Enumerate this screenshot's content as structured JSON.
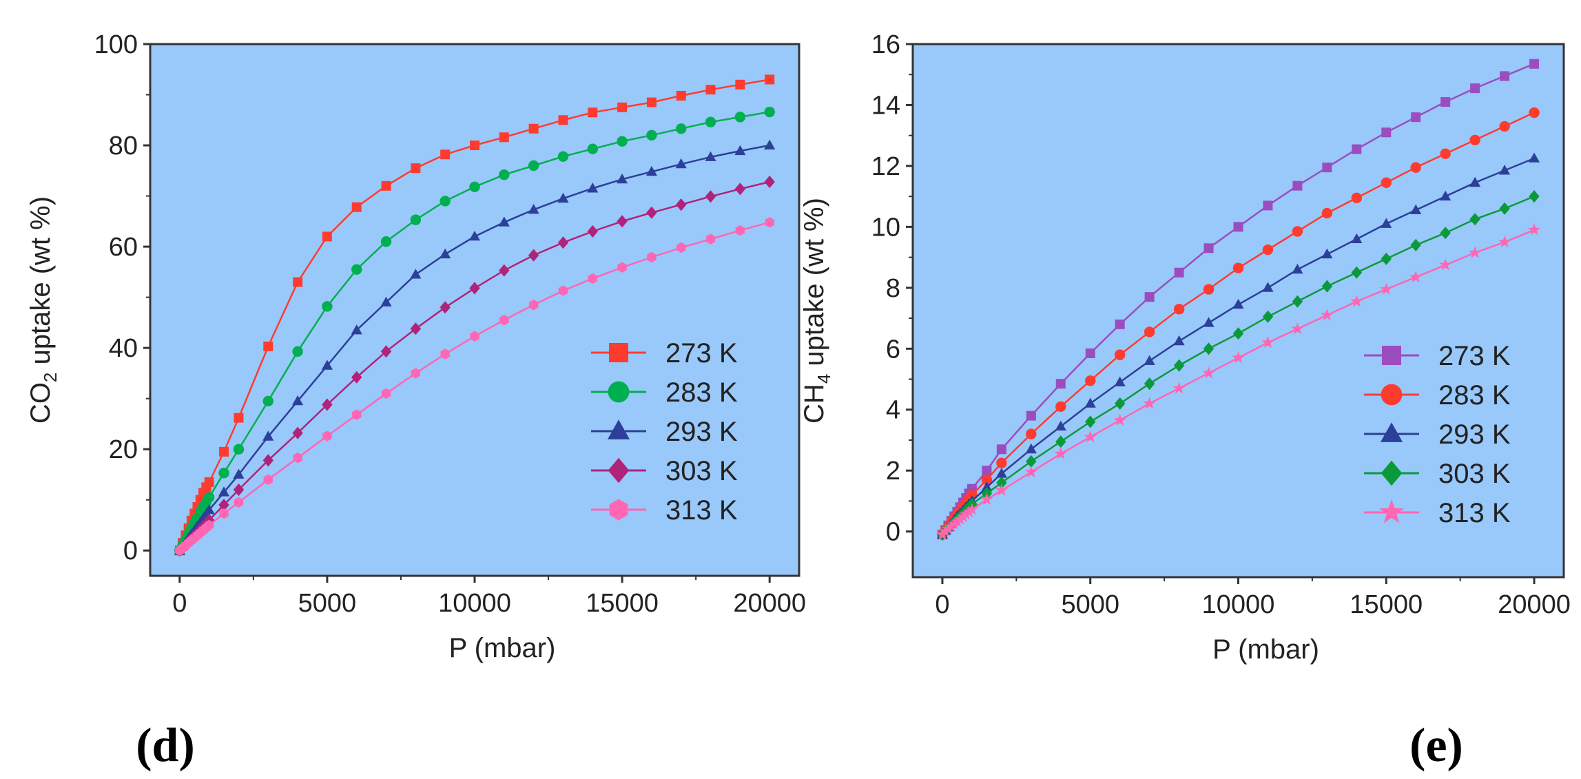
{
  "chart_data": [
    {
      "type": "line",
      "panel_label": "(d)",
      "xlabel": "P (mbar)",
      "ylabel": {
        "pre": "CO",
        "sub": "2",
        "post": " uptake (wt %)"
      },
      "xlim": [
        -1000,
        21000
      ],
      "ylim": [
        -5,
        100
      ],
      "xticks": [
        0,
        5000,
        10000,
        15000,
        20000
      ],
      "yticks": [
        0,
        20,
        40,
        60,
        80,
        100
      ],
      "ytick_minor_step": 10,
      "background": "#99c8fa",
      "legend_position": "bottom-right",
      "x": [
        0,
        100,
        200,
        300,
        400,
        500,
        600,
        700,
        800,
        900,
        1000,
        1500,
        2000,
        3000,
        4000,
        5000,
        6000,
        7000,
        8000,
        9000,
        10000,
        11000,
        12000,
        13000,
        14000,
        15000,
        16000,
        17000,
        18000,
        19000,
        20000
      ],
      "series": [
        {
          "name": "273 K",
          "color": "#ff3b30",
          "marker": "square",
          "values": [
            0,
            1.5,
            3.0,
            4.4,
            5.9,
            7.3,
            8.6,
            10.0,
            11.4,
            12.5,
            13.5,
            19.5,
            26.2,
            40.3,
            53.0,
            62.0,
            67.8,
            72.0,
            75.5,
            78.2,
            80.0,
            81.6,
            83.3,
            85.0,
            86.5,
            87.5,
            88.5,
            89.8,
            91.0,
            92.0,
            93.0
          ]
        },
        {
          "name": "283 K",
          "color": "#00b050",
          "marker": "circle",
          "values": [
            0,
            1.1,
            2.2,
            3.3,
            4.4,
            5.5,
            6.5,
            7.6,
            8.6,
            9.5,
            10.5,
            15.3,
            20.0,
            29.5,
            39.3,
            48.2,
            55.5,
            61.0,
            65.3,
            69.0,
            71.8,
            74.2,
            76.0,
            77.8,
            79.3,
            80.8,
            82.0,
            83.3,
            84.6,
            85.6,
            86.6
          ]
        },
        {
          "name": "293 K",
          "color": "#2c3f99",
          "marker": "triangle",
          "values": [
            0,
            0.8,
            1.6,
            2.4,
            3.2,
            4.0,
            4.8,
            5.6,
            6.4,
            7.2,
            8.0,
            11.5,
            15.0,
            22.5,
            29.5,
            36.5,
            43.5,
            49.0,
            54.5,
            58.5,
            62.0,
            64.8,
            67.3,
            69.5,
            71.5,
            73.3,
            74.8,
            76.3,
            77.7,
            78.9,
            80.0
          ]
        },
        {
          "name": "303 K",
          "color": "#b0237a",
          "marker": "diamond",
          "values": [
            0,
            0.6,
            1.2,
            1.8,
            2.4,
            3.0,
            3.6,
            4.2,
            4.8,
            5.4,
            6.0,
            9.0,
            12.0,
            17.8,
            23.2,
            28.8,
            34.2,
            39.3,
            43.8,
            48.0,
            51.8,
            55.3,
            58.3,
            60.8,
            63.0,
            65.0,
            66.7,
            68.3,
            69.9,
            71.4,
            72.8
          ]
        },
        {
          "name": "313 K",
          "color": "#ff66b3",
          "marker": "hexagon",
          "values": [
            0,
            0.5,
            1.0,
            1.5,
            2.0,
            2.5,
            3.0,
            3.5,
            4.0,
            4.5,
            5.0,
            7.3,
            9.5,
            14.0,
            18.3,
            22.6,
            26.8,
            31.0,
            35.0,
            38.8,
            42.3,
            45.5,
            48.5,
            51.3,
            53.7,
            55.9,
            57.9,
            59.8,
            61.5,
            63.2,
            64.8
          ]
        }
      ]
    },
    {
      "type": "line",
      "panel_label": "(e)",
      "xlabel": "P (mbar)",
      "ylabel": {
        "pre": "CH",
        "sub": "4",
        "post": " uptake (wt %)"
      },
      "xlim": [
        -1000,
        21000
      ],
      "ylim": [
        -1.5,
        16
      ],
      "xticks": [
        0,
        5000,
        10000,
        15000,
        20000
      ],
      "yticks": [
        0,
        2,
        4,
        6,
        8,
        10,
        12,
        14,
        16
      ],
      "ytick_minor_step": 1,
      "background": "#99c8fa",
      "legend_position": "bottom-right",
      "x": [
        0,
        100,
        200,
        300,
        400,
        500,
        600,
        700,
        800,
        900,
        1000,
        1500,
        2000,
        3000,
        4000,
        5000,
        6000,
        7000,
        8000,
        9000,
        10000,
        11000,
        12000,
        13000,
        14000,
        15000,
        16000,
        17000,
        18000,
        19000,
        20000
      ],
      "series": [
        {
          "name": "273 K",
          "color": "#9b4dbf",
          "marker": "square",
          "values": [
            -0.1,
            0.05,
            0.2,
            0.35,
            0.5,
            0.65,
            0.8,
            0.95,
            1.1,
            1.25,
            1.4,
            2.0,
            2.7,
            3.8,
            4.85,
            5.85,
            6.8,
            7.7,
            8.5,
            9.3,
            10.0,
            10.7,
            11.35,
            11.95,
            12.55,
            13.1,
            13.6,
            14.1,
            14.55,
            14.95,
            15.35
          ]
        },
        {
          "name": "283 K",
          "color": "#ff3b30",
          "marker": "circle",
          "values": [
            -0.1,
            0.03,
            0.16,
            0.29,
            0.42,
            0.55,
            0.68,
            0.81,
            0.94,
            1.07,
            1.2,
            1.7,
            2.25,
            3.2,
            4.1,
            4.95,
            5.8,
            6.55,
            7.3,
            7.95,
            8.65,
            9.25,
            9.85,
            10.45,
            10.95,
            11.45,
            11.95,
            12.4,
            12.85,
            13.3,
            13.75
          ]
        },
        {
          "name": "293 K",
          "color": "#2c3f99",
          "marker": "triangle",
          "values": [
            -0.1,
            0.02,
            0.14,
            0.26,
            0.38,
            0.5,
            0.6,
            0.7,
            0.8,
            0.9,
            1.0,
            1.45,
            1.9,
            2.7,
            3.45,
            4.2,
            4.9,
            5.6,
            6.25,
            6.85,
            7.45,
            8.0,
            8.6,
            9.1,
            9.6,
            10.1,
            10.55,
            11.0,
            11.45,
            11.85,
            12.25
          ]
        },
        {
          "name": "303 K",
          "color": "#0a9a3a",
          "marker": "diamond",
          "values": [
            -0.1,
            0.0,
            0.1,
            0.2,
            0.3,
            0.4,
            0.5,
            0.6,
            0.7,
            0.8,
            0.9,
            1.25,
            1.6,
            2.3,
            2.95,
            3.6,
            4.2,
            4.85,
            5.45,
            6.0,
            6.5,
            7.05,
            7.55,
            8.05,
            8.5,
            8.95,
            9.4,
            9.8,
            10.25,
            10.6,
            11.0
          ]
        },
        {
          "name": "313 K",
          "color": "#ff66b3",
          "marker": "star",
          "values": [
            -0.1,
            0.0,
            0.08,
            0.16,
            0.24,
            0.32,
            0.4,
            0.48,
            0.56,
            0.64,
            0.72,
            1.05,
            1.35,
            1.95,
            2.55,
            3.1,
            3.65,
            4.2,
            4.7,
            5.2,
            5.7,
            6.2,
            6.65,
            7.1,
            7.55,
            7.95,
            8.35,
            8.75,
            9.15,
            9.5,
            9.9
          ]
        }
      ]
    }
  ]
}
